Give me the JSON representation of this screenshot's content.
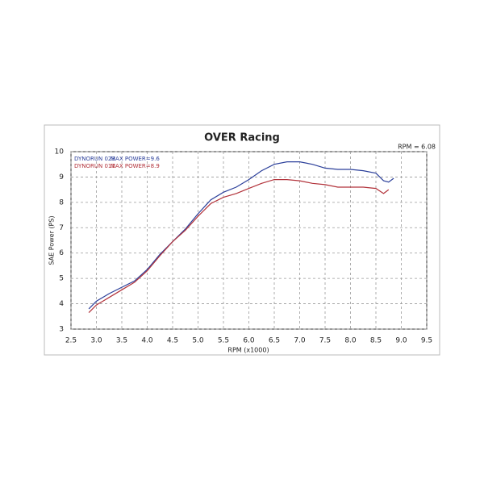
{
  "chart_data": {
    "type": "line",
    "title": "OVER Racing",
    "annotation": "RPM = 6.08",
    "x_label": "RPM (x1000)",
    "y_label": "SAE Power (PS)",
    "x": [
      2.85,
      3.0,
      3.25,
      3.5,
      3.75,
      4.0,
      4.25,
      4.5,
      4.75,
      5.0,
      5.25,
      5.5,
      5.75,
      6.0,
      6.25,
      6.5,
      6.75,
      7.0,
      7.25,
      7.5,
      7.75,
      8.0,
      8.25,
      8.5,
      8.65,
      8.75,
      8.85
    ],
    "series": [
      {
        "name": "DYNORUN 023",
        "note": "MAX POWER=9.6",
        "color": "#2b3f9a",
        "values": [
          3.8,
          4.1,
          4.4,
          4.65,
          4.9,
          5.35,
          5.95,
          6.45,
          6.95,
          7.55,
          8.1,
          8.4,
          8.6,
          8.9,
          9.25,
          9.5,
          9.6,
          9.6,
          9.5,
          9.35,
          9.3,
          9.3,
          9.25,
          9.15,
          8.85,
          8.8,
          8.95
        ]
      },
      {
        "name": "DYNORUN 011",
        "note": "MAX POWER=8.9",
        "color": "#b2323a",
        "values": [
          3.65,
          3.95,
          4.25,
          4.55,
          4.85,
          5.3,
          5.9,
          6.45,
          6.9,
          7.45,
          7.95,
          8.2,
          8.35,
          8.55,
          8.75,
          8.9,
          8.9,
          8.85,
          8.75,
          8.7,
          8.6,
          8.6,
          8.6,
          8.55,
          8.35,
          8.5,
          null
        ]
      }
    ],
    "xlim": [
      2.5,
      9.5
    ],
    "xticks": [
      2.5,
      {
        "value": 3,
        "label": "3.0"
      },
      3.5,
      {
        "value": 4,
        "label": "4.0"
      },
      4.5,
      {
        "value": 5,
        "label": "5.0"
      },
      5.5,
      {
        "value": 6,
        "label": "6.0"
      },
      6.5,
      {
        "value": 7,
        "label": "7.0"
      },
      7.5,
      {
        "value": 8,
        "label": "8.0"
      },
      8.5,
      {
        "value": 9,
        "label": "9.0"
      },
      9.5
    ],
    "ylim": [
      3,
      10
    ],
    "yticks": [
      3,
      4,
      5,
      6,
      7,
      8,
      9,
      10
    ],
    "grid": true
  }
}
